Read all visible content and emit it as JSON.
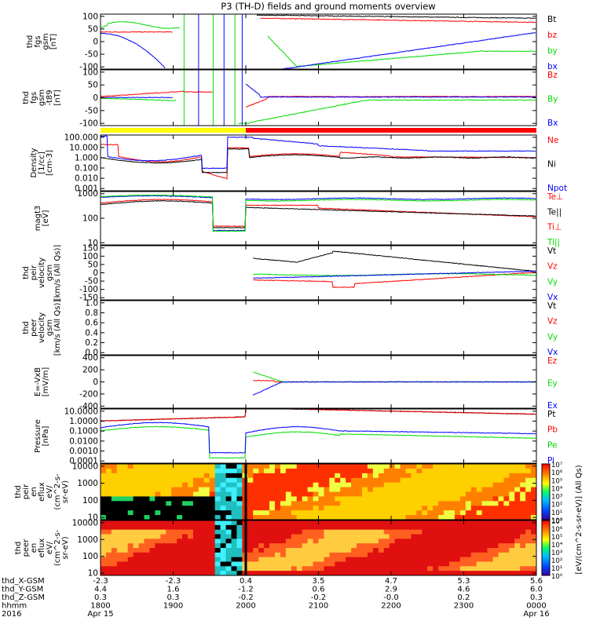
{
  "title": "P3 (TH-D) fields and ground moments overview",
  "colors": {
    "black": "#000000",
    "red": "#ff0000",
    "green": "#00dd00",
    "blue": "#0000ff",
    "yellow": "#ffff00"
  },
  "chart_data": [
    {
      "type": "line",
      "ylabel": [
        "thd",
        "fgs",
        "gsm",
        "[nT]"
      ],
      "yticks": [
        "100",
        "50",
        "0",
        "-50",
        "-100"
      ],
      "ylim": [
        -100,
        100
      ],
      "legend": [
        {
          "label": "Bt",
          "color": "black"
        },
        {
          "label": "bz",
          "color": "red"
        },
        {
          "label": "by",
          "color": "green"
        },
        {
          "label": "bx",
          "color": "blue"
        }
      ]
    },
    {
      "type": "line",
      "ylabel": [
        "thd",
        "fgs",
        "gsm",
        "-t89",
        "[nT]"
      ],
      "yticks": [
        "100",
        "50",
        "0",
        "-50",
        "-100"
      ],
      "ylim": [
        -120,
        120
      ],
      "legend": [
        {
          "label": "Bz",
          "color": "red"
        },
        {
          "label": "By",
          "color": "green"
        },
        {
          "label": "Bx",
          "color": "blue"
        }
      ],
      "status_bar": [
        {
          "from": "1800",
          "to": "2000",
          "color": "yellow"
        },
        {
          "from": "2000",
          "to": "0000",
          "color": "red"
        }
      ]
    },
    {
      "type": "line",
      "ylabel": [
        "Density",
        "[1/cc]",
        "[cm-3]"
      ],
      "yticks": [
        "100.000",
        "10.000",
        "1.000",
        "0.100",
        "0.010",
        "0.001"
      ],
      "scale": "log",
      "legend": [
        {
          "label": "Ne",
          "color": "red"
        },
        {
          "label": "Ni",
          "color": "black"
        },
        {
          "label": "Npot",
          "color": "blue"
        }
      ]
    },
    {
      "type": "line",
      "ylabel": [
        "magt3",
        "[eV]"
      ],
      "yticks": [
        "1000",
        "100",
        "10"
      ],
      "scale": "log",
      "legend": [
        {
          "label": "Te⊥",
          "color": "red"
        },
        {
          "label": "Te||",
          "color": "black"
        },
        {
          "label": "Ti⊥",
          "color": "red"
        },
        {
          "label": "Ti||",
          "color": "green"
        }
      ]
    },
    {
      "type": "line",
      "ylabel": [
        "thd",
        "peir",
        "velocity",
        "gsm",
        "[km/s (All Qs)]"
      ],
      "yticks": [
        "150",
        "100",
        "50",
        "0",
        "-50",
        "-100",
        "-150"
      ],
      "ylim": [
        -150,
        150
      ],
      "legend": [
        {
          "label": "Vt",
          "color": "black"
        },
        {
          "label": "Vz",
          "color": "red"
        },
        {
          "label": "Vy",
          "color": "green"
        },
        {
          "label": "Vx",
          "color": "blue"
        }
      ]
    },
    {
      "type": "line",
      "ylabel": [
        "thd",
        "peer",
        "velocity",
        "gsm",
        "[km/s (All Qs)]"
      ],
      "yticks": [
        "1.0",
        "0.8",
        "0.6",
        "0.4",
        "0.2",
        "0.0"
      ],
      "ylim": [
        0,
        1
      ],
      "legend": [
        {
          "label": "Vt",
          "color": "black"
        },
        {
          "label": "Vz",
          "color": "red"
        },
        {
          "label": "Vy",
          "color": "green"
        },
        {
          "label": "Vx",
          "color": "blue"
        }
      ]
    },
    {
      "type": "line",
      "ylabel": [
        "E=-VxB",
        "[mV/m]"
      ],
      "yticks": [
        "400",
        "200",
        "0",
        "-200",
        "-400"
      ],
      "ylim": [
        -400,
        400
      ],
      "legend": [
        {
          "label": "Ez",
          "color": "red"
        },
        {
          "label": "Ey",
          "color": "green"
        },
        {
          "label": "Ex",
          "color": "blue"
        }
      ]
    },
    {
      "type": "line",
      "ylabel": [
        "Pressure",
        "[nPa]"
      ],
      "yticks": [
        "10.0000",
        "1.0000",
        "0.1000",
        "0.0100",
        "0.0010",
        "0.0001"
      ],
      "scale": "log",
      "legend": [
        {
          "label": "Pt",
          "color": "black"
        },
        {
          "label": "Pb",
          "color": "red"
        },
        {
          "label": "Pe",
          "color": "green"
        },
        {
          "label": "Pi",
          "color": "blue"
        }
      ]
    },
    {
      "type": "heatmap",
      "ylabel": [
        "thd",
        "peir",
        "en",
        "eflux",
        "eV/",
        "(cm^2-s-",
        "sr-eV)"
      ],
      "yticks": [
        "10000",
        "1000",
        "100",
        "10"
      ],
      "scale": "log"
    },
    {
      "type": "heatmap",
      "ylabel": [
        "thd",
        "peer",
        "en",
        "eflux",
        "eV/",
        "(cm^2-s-",
        "sr-eV)"
      ],
      "yticks": [
        "10000",
        "1000",
        "100",
        "10"
      ],
      "scale": "log"
    }
  ],
  "colorbar": {
    "ticks": [
      "10⁷",
      "10⁶",
      "10⁵",
      "10⁴",
      "10³",
      "10²",
      "10¹",
      "10⁰"
    ],
    "label": "[eV/(cm^2-s-sr-eV)] (All Qs)"
  },
  "xaxis": {
    "row_labels": [
      "thd_X-GSM",
      "thd_Y-GSM",
      "thd_Z-GSM",
      "hhmm",
      "2016"
    ],
    "columns": [
      {
        "values": [
          "-2.3",
          "4.4",
          "0.3",
          "1800",
          "Apr 15"
        ]
      },
      {
        "values": [
          "-2.3",
          "1.6",
          "0.3",
          "1900",
          ""
        ]
      },
      {
        "values": [
          "0.4",
          "-1.2",
          "-0.2",
          "2000",
          ""
        ]
      },
      {
        "values": [
          "3.5",
          "0.6",
          "-0.2",
          "2100",
          ""
        ]
      },
      {
        "values": [
          "4.7",
          "2.9",
          "-0.0",
          "2200",
          ""
        ]
      },
      {
        "values": [
          "5.3",
          "4.6",
          "0.2",
          "2300",
          ""
        ]
      },
      {
        "values": [
          "5.6",
          "6.0",
          "0.3",
          "0000",
          "Apr 16"
        ]
      }
    ]
  }
}
